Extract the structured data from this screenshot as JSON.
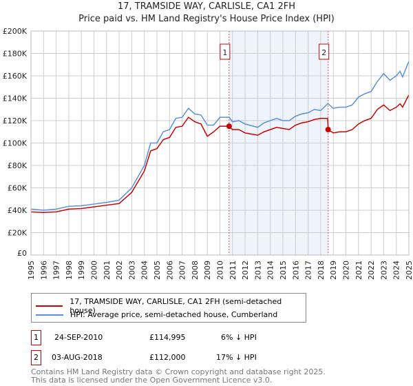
{
  "title": "17, TRAMSIDE WAY, CARLISLE, CA1 2FH",
  "subtitle": "Price paid vs. HM Land Registry's House Price Index (HPI)",
  "chart_data": {
    "type": "line",
    "title": "17, TRAMSIDE WAY, CARLISLE, CA1 2FH",
    "subtitle": "Price paid vs. HM Land Registry's House Price Index (HPI)",
    "xlim": [
      1995,
      2025
    ],
    "ylim": [
      0,
      200000
    ],
    "grid": true,
    "x_ticks": [
      "1995",
      "1996",
      "1997",
      "1998",
      "1999",
      "2000",
      "2001",
      "2002",
      "2003",
      "2004",
      "2005",
      "2006",
      "2007",
      "2008",
      "2009",
      "2010",
      "2011",
      "2012",
      "2013",
      "2014",
      "2015",
      "2016",
      "2017",
      "2018",
      "2019",
      "2020",
      "2021",
      "2022",
      "2023",
      "2024",
      "2025"
    ],
    "y_ticks": [
      {
        "v": 0,
        "label": "£0"
      },
      {
        "v": 20000,
        "label": "£20K"
      },
      {
        "v": 40000,
        "label": "£40K"
      },
      {
        "v": 60000,
        "label": "£60K"
      },
      {
        "v": 80000,
        "label": "£80K"
      },
      {
        "v": 100000,
        "label": "£100K"
      },
      {
        "v": 120000,
        "label": "£120K"
      },
      {
        "v": 140000,
        "label": "£140K"
      },
      {
        "v": 160000,
        "label": "£160K"
      },
      {
        "v": 180000,
        "label": "£180K"
      },
      {
        "v": 200000,
        "label": "£200K"
      }
    ],
    "x": [
      1995,
      1996,
      1997,
      1998,
      1999,
      2000,
      2001,
      2002,
      2003,
      2004,
      2004.5,
      2005,
      2005.5,
      2006,
      2006.5,
      2007,
      2007.5,
      2008,
      2008.5,
      2009,
      2009.5,
      2010,
      2010.73,
      2011,
      2011.5,
      2012,
      2013,
      2013.5,
      2014,
      2014.5,
      2015,
      2015.5,
      2016,
      2016.5,
      2017,
      2017.5,
      2018,
      2018.55,
      2018.6,
      2019,
      2019.5,
      2020,
      2020.5,
      2021,
      2021.5,
      2022,
      2022.5,
      2023,
      2023.5,
      2024,
      2024.3,
      2024.5,
      2025
    ],
    "series": [
      {
        "name": "17, TRAMSIDE WAY, CARLISLE, CA1 2FH (semi-detached house)",
        "color": "#cc0000",
        "values": [
          38500,
          38000,
          38500,
          41000,
          41500,
          43000,
          44500,
          46000,
          56000,
          75000,
          93000,
          95000,
          103000,
          105000,
          114000,
          115000,
          123000,
          119000,
          117000,
          106000,
          110000,
          115000,
          115000,
          112000,
          112000,
          109000,
          107000,
          110000,
          112000,
          114000,
          113000,
          112000,
          116000,
          118000,
          119000,
          121000,
          122000,
          122000,
          112000,
          109000,
          110000,
          110000,
          112000,
          117000,
          120000,
          122000,
          130000,
          134000,
          129000,
          132000,
          135000,
          132000,
          143000
        ]
      },
      {
        "name": "HPI: Average price, semi-detached house, Cumberland",
        "color": "#5b8fd6",
        "values": [
          41000,
          40000,
          41000,
          43500,
          44000,
          45500,
          47000,
          49000,
          60000,
          80000,
          100000,
          100000,
          110000,
          112000,
          122000,
          123000,
          131000,
          126000,
          125000,
          116000,
          116000,
          123000,
          123000,
          119000,
          120000,
          117000,
          114000,
          118000,
          120000,
          122000,
          120000,
          120000,
          124000,
          126000,
          127000,
          130000,
          129000,
          135000,
          135000,
          131000,
          132000,
          132000,
          134000,
          141000,
          144000,
          146000,
          155000,
          162000,
          156000,
          160000,
          164000,
          159000,
          173000
        ]
      }
    ],
    "shaded_range": [
      2010.73,
      2018.59
    ],
    "annotations": [
      {
        "label": "1",
        "x": 2010.73,
        "price": 114995
      },
      {
        "label": "2",
        "x": 2018.59,
        "price": 112000
      }
    ]
  },
  "legend": {
    "items": [
      {
        "label": "17, TRAMSIDE WAY, CARLISLE, CA1 2FH (semi-detached house)",
        "color": "#cc0000"
      },
      {
        "label": "HPI: Average price, semi-detached house, Cumberland",
        "color": "#5b8fd6"
      }
    ]
  },
  "transactions": [
    {
      "num": "1",
      "date": "24-SEP-2010",
      "price": "£114,995",
      "hpi": "6% ↓ HPI"
    },
    {
      "num": "2",
      "date": "03-AUG-2018",
      "price": "£112,000",
      "hpi": "17% ↓ HPI"
    }
  ],
  "footer": {
    "line1": "Contains HM Land Registry data © Crown copyright and database right 2025.",
    "line2": "This data is licensed under the Open Government Licence v3.0."
  }
}
